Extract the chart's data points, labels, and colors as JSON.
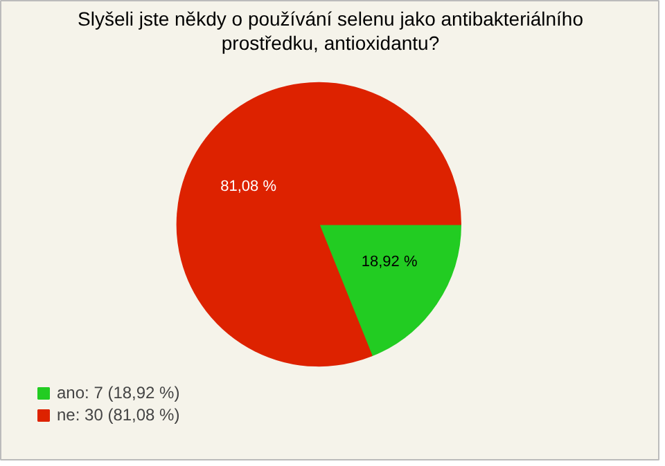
{
  "chart_data": {
    "type": "pie",
    "title": "Slyšeli jste někdy o používání selenu jako antibakteriálního\nprostředku, antioxidantu?",
    "categories": [
      "ano: 7 (18,92 %)",
      "ne: 30 (81,08 %)"
    ],
    "values": [
      18.92,
      81.08
    ],
    "colors": [
      "#22cc22",
      "#dd2200"
    ],
    "value_labels": [
      "18,92 %",
      "81,08 %"
    ],
    "legend": "bottom left"
  }
}
